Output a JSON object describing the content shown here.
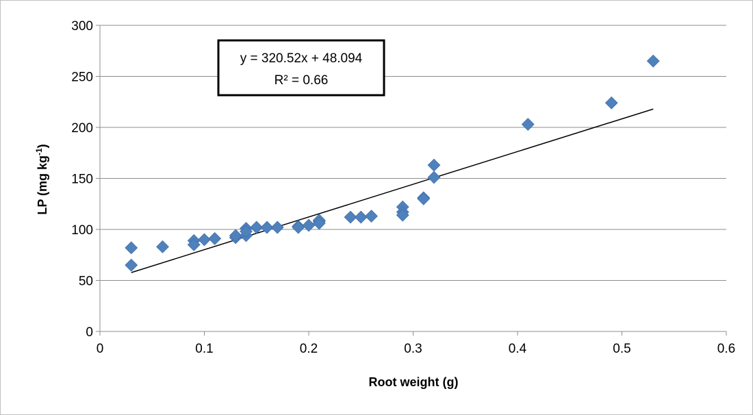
{
  "chart_data": {
    "type": "scatter",
    "xlabel": "Root weight (g)",
    "ylabel": {
      "main": "LP (mg kg",
      "sup": "-1",
      "end": ")"
    },
    "xlim": [
      0,
      0.6
    ],
    "ylim": [
      0,
      300
    ],
    "x_ticks": [
      "0",
      "0.1",
      "0.2",
      "0.3",
      "0.4",
      "0.5",
      "0.6"
    ],
    "y_ticks": [
      "0",
      "50",
      "100",
      "150",
      "200",
      "250",
      "300"
    ],
    "grid": true,
    "marker_color": "#4F81BD",
    "trendline": {
      "slope": 320.52,
      "intercept": 48.094,
      "x_range": [
        0.03,
        0.53
      ],
      "equation": "y = 320.52x + 48.094",
      "r_squared": "R² = 0.66"
    },
    "points": [
      {
        "x": 0.03,
        "y": 82
      },
      {
        "x": 0.03,
        "y": 65
      },
      {
        "x": 0.06,
        "y": 83
      },
      {
        "x": 0.09,
        "y": 89
      },
      {
        "x": 0.09,
        "y": 85
      },
      {
        "x": 0.1,
        "y": 90
      },
      {
        "x": 0.11,
        "y": 91
      },
      {
        "x": 0.13,
        "y": 92
      },
      {
        "x": 0.13,
        "y": 94
      },
      {
        "x": 0.14,
        "y": 101
      },
      {
        "x": 0.14,
        "y": 94
      },
      {
        "x": 0.14,
        "y": 98
      },
      {
        "x": 0.15,
        "y": 102
      },
      {
        "x": 0.16,
        "y": 102
      },
      {
        "x": 0.17,
        "y": 102
      },
      {
        "x": 0.19,
        "y": 103
      },
      {
        "x": 0.19,
        "y": 102
      },
      {
        "x": 0.2,
        "y": 104
      },
      {
        "x": 0.21,
        "y": 108
      },
      {
        "x": 0.21,
        "y": 109
      },
      {
        "x": 0.21,
        "y": 106
      },
      {
        "x": 0.24,
        "y": 112
      },
      {
        "x": 0.25,
        "y": 112
      },
      {
        "x": 0.26,
        "y": 113
      },
      {
        "x": 0.29,
        "y": 122
      },
      {
        "x": 0.29,
        "y": 117
      },
      {
        "x": 0.29,
        "y": 114
      },
      {
        "x": 0.31,
        "y": 131
      },
      {
        "x": 0.31,
        "y": 130
      },
      {
        "x": 0.32,
        "y": 163
      },
      {
        "x": 0.32,
        "y": 151
      },
      {
        "x": 0.41,
        "y": 203
      },
      {
        "x": 0.49,
        "y": 224
      },
      {
        "x": 0.53,
        "y": 265
      }
    ]
  }
}
